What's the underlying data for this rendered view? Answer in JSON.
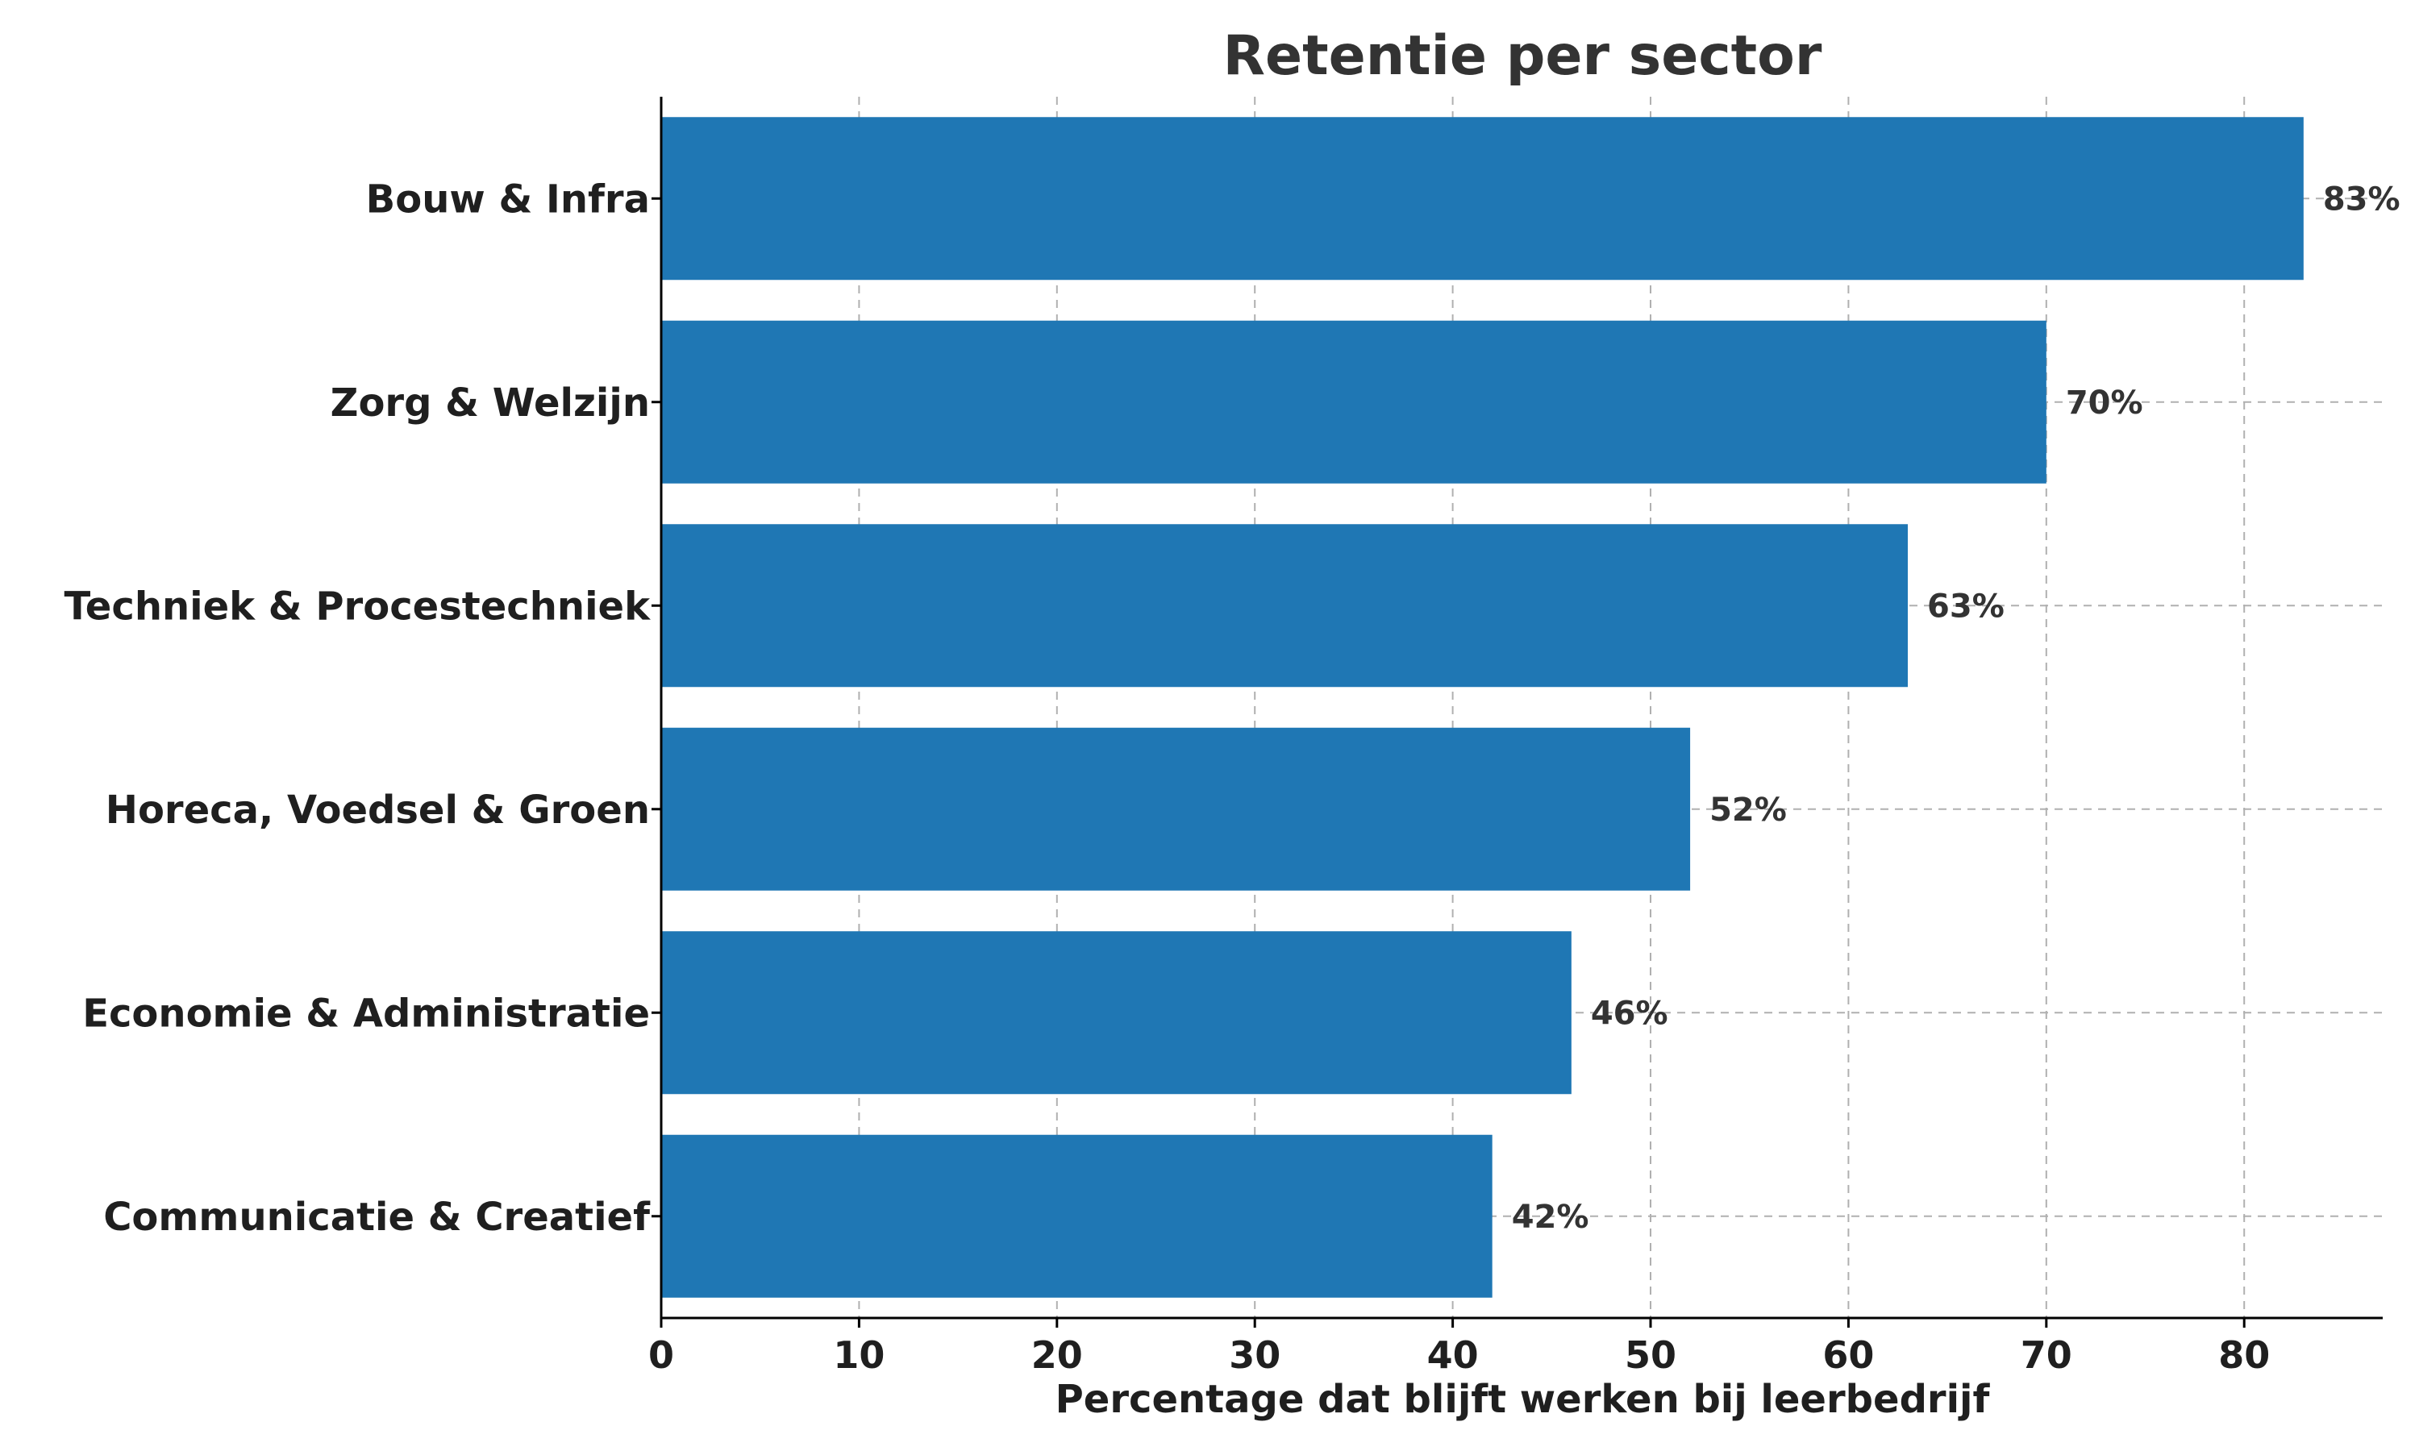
{
  "chart_data": {
    "type": "bar",
    "orientation": "horizontal",
    "title": "Retentie per sector",
    "xlabel": "Percentage dat blijft werken bij leerbedrijf",
    "ylabel": "",
    "categories": [
      "Bouw & Infra",
      "Zorg & Welzijn",
      "Techniek & Procestechniek",
      "Horeca, Voedsel & Groen",
      "Economie & Administratie",
      "Communicatie & Creatief"
    ],
    "values": [
      83,
      70,
      63,
      52,
      46,
      42
    ],
    "data_labels": [
      "83%",
      "70%",
      "63%",
      "52%",
      "46%",
      "42%"
    ],
    "xlim": [
      0,
      87
    ],
    "xticks": [
      0,
      10,
      20,
      30,
      40,
      50,
      60,
      70,
      80
    ],
    "grid": true,
    "grid_style": "dashed",
    "bar_color": "#1f77b4"
  }
}
